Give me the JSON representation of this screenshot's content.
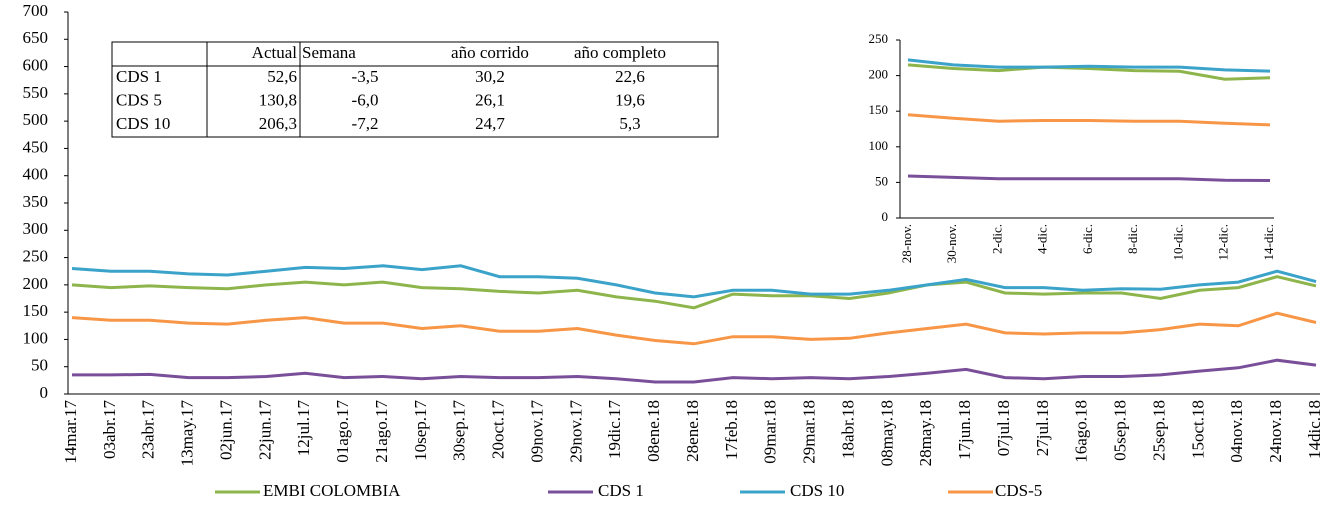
{
  "chart_data": [
    {
      "type": "line",
      "categories": [
        "14mar.17",
        "03abr.17",
        "23abr.17",
        "13may.17",
        "02jun.17",
        "22jun.17",
        "12jul.17",
        "01ago.17",
        "21ago.17",
        "10sep.17",
        "30sep.17",
        "20oct.17",
        "09nov.17",
        "29nov.17",
        "19dic.17",
        "08ene.18",
        "28ene.18",
        "17feb.18",
        "09mar.18",
        "29mar.18",
        "18abr.18",
        "08may.18",
        "28may.18",
        "17jun.18",
        "07jul.18",
        "27jul.18",
        "16ago.18",
        "05sep.18",
        "25sep.18",
        "15oct.18",
        "04nov.18",
        "24nov.18",
        "14dic.18"
      ],
      "series": [
        {
          "name": "EMBI COLOMBIA",
          "color": "#8db54b",
          "values": [
            200,
            195,
            198,
            195,
            193,
            200,
            205,
            200,
            205,
            195,
            193,
            188,
            185,
            190,
            178,
            170,
            158,
            183,
            180,
            180,
            175,
            185,
            200,
            205,
            185,
            183,
            185,
            185,
            175,
            190,
            195,
            215,
            198
          ]
        },
        {
          "name": "CDS 1",
          "color": "#7a4f9a",
          "values": [
            35,
            35,
            36,
            30,
            30,
            32,
            38,
            30,
            32,
            28,
            32,
            30,
            30,
            32,
            28,
            22,
            22,
            30,
            28,
            30,
            28,
            32,
            38,
            45,
            30,
            28,
            32,
            32,
            35,
            42,
            48,
            62,
            53
          ]
        },
        {
          "name": "CDS 10",
          "color": "#3ba3c9",
          "values": [
            230,
            225,
            225,
            220,
            218,
            225,
            232,
            230,
            235,
            228,
            235,
            215,
            215,
            212,
            200,
            185,
            178,
            190,
            190,
            183,
            183,
            190,
            200,
            210,
            195,
            195,
            190,
            193,
            192,
            200,
            205,
            225,
            206
          ]
        },
        {
          "name": "CDS-5",
          "color": "#f79646",
          "values": [
            140,
            135,
            135,
            130,
            128,
            135,
            140,
            130,
            130,
            120,
            125,
            115,
            115,
            120,
            108,
            98,
            92,
            105,
            105,
            100,
            102,
            112,
            120,
            128,
            112,
            110,
            112,
            112,
            118,
            128,
            125,
            148,
            131
          ]
        }
      ],
      "ylim": [
        0,
        700
      ],
      "yticks": [
        0,
        50,
        100,
        150,
        200,
        250,
        300,
        350,
        400,
        450,
        500,
        550,
        600,
        650,
        700
      ]
    },
    {
      "type": "line",
      "categories": [
        "28-nov.",
        "30-nov.",
        "2-dic.",
        "4-dic.",
        "6-dic.",
        "8-dic.",
        "10-dic.",
        "12-dic.",
        "14-dic."
      ],
      "series": [
        {
          "name": "EMBI COLOMBIA",
          "color": "#8db54b",
          "values": [
            215,
            210,
            207,
            212,
            210,
            207,
            206,
            195,
            197
          ]
        },
        {
          "name": "CDS 1",
          "color": "#7a4f9a",
          "values": [
            59,
            57,
            55,
            55,
            55,
            55,
            55,
            53,
            52.6
          ]
        },
        {
          "name": "CDS 10",
          "color": "#3ba3c9",
          "values": [
            222,
            215,
            212,
            212,
            213,
            212,
            212,
            208,
            206.3
          ]
        },
        {
          "name": "CDS-5",
          "color": "#f79646",
          "values": [
            145,
            140,
            136,
            137,
            137,
            136,
            136,
            133,
            130.8
          ]
        }
      ],
      "ylim": [
        0,
        250
      ],
      "yticks": [
        0,
        50,
        100,
        150,
        200,
        250
      ]
    }
  ],
  "table": {
    "header": [
      "Actual",
      "Semana",
      "año corrido",
      "año completo"
    ],
    "rows": [
      [
        "CDS 1",
        "52,6",
        "-3,5",
        "30,2",
        "22,6"
      ],
      [
        "CDS 5",
        "130,8",
        "-6,0",
        "26,1",
        "19,6"
      ],
      [
        "CDS 10",
        "206,3",
        "-7,2",
        "24,7",
        "5,3"
      ]
    ]
  }
}
